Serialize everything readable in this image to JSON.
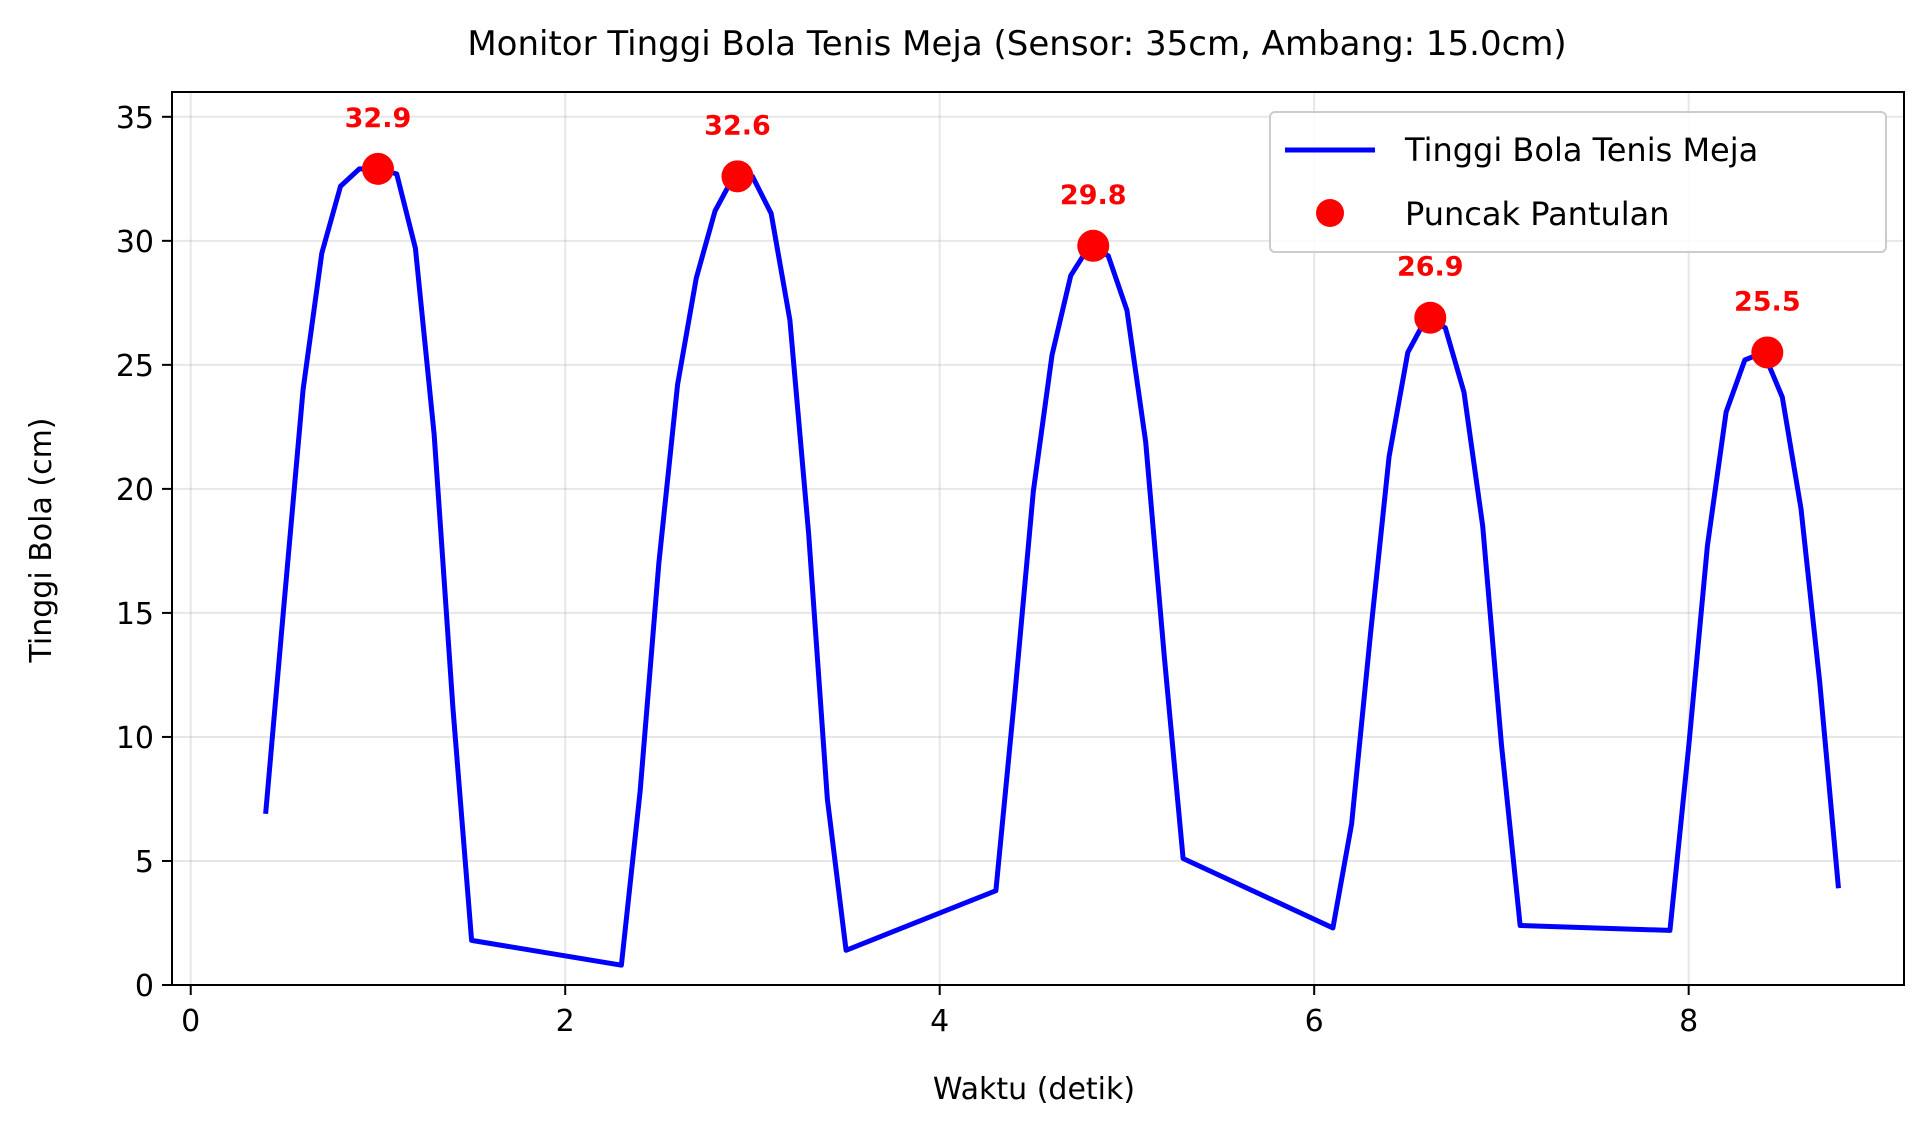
{
  "chart_data": {
    "type": "line",
    "title": "Monitor Tinggi Bola Tenis Meja (Sensor: 35cm, Ambang: 15.0cm)",
    "xlabel": "Waktu (detik)",
    "ylabel": "Tinggi Bola (cm)",
    "xlim": [
      -0.1,
      9.15
    ],
    "ylim": [
      0,
      36
    ],
    "x_ticks": [
      0,
      2,
      4,
      6,
      8
    ],
    "x_tick_labels": [
      "0",
      "2",
      "4",
      "6",
      "8"
    ],
    "y_ticks": [
      0,
      5,
      10,
      15,
      20,
      25,
      30,
      35
    ],
    "y_tick_labels": [
      "0",
      "5",
      "10",
      "15",
      "20",
      "25",
      "30",
      "35"
    ],
    "grid": true,
    "legend_position": "top-right",
    "series": [
      {
        "name": "Tinggi Bola Tenis Meja",
        "kind": "line",
        "color": "#0000ff",
        "x": [
          0.4,
          0.5,
          0.6,
          0.7,
          0.8,
          0.9,
          1.0,
          1.1,
          1.2,
          1.3,
          1.4,
          1.5,
          2.3,
          2.4,
          2.5,
          2.6,
          2.7,
          2.8,
          2.9,
          3.0,
          3.1,
          3.2,
          3.3,
          3.4,
          3.5,
          4.3,
          4.4,
          4.5,
          4.6,
          4.7,
          4.8,
          4.9,
          5.0,
          5.1,
          5.2,
          5.3,
          6.1,
          6.2,
          6.3,
          6.4,
          6.5,
          6.6,
          6.7,
          6.8,
          6.9,
          7.0,
          7.1,
          7.9,
          8.0,
          8.1,
          8.2,
          8.3,
          8.4,
          8.5,
          8.6,
          8.7,
          8.8
        ],
        "y": [
          6.9,
          15.5,
          24.0,
          29.5,
          32.2,
          32.9,
          32.9,
          32.7,
          29.7,
          22.2,
          11.2,
          1.8,
          0.8,
          7.8,
          17.0,
          24.2,
          28.5,
          31.2,
          32.6,
          32.6,
          31.1,
          26.8,
          18.2,
          7.5,
          1.4,
          3.8,
          11.6,
          19.9,
          25.4,
          28.6,
          29.8,
          29.4,
          27.2,
          21.9,
          13.2,
          5.1,
          2.3,
          6.5,
          14.1,
          21.3,
          25.5,
          26.9,
          26.5,
          23.9,
          18.5,
          9.7,
          2.4,
          2.2,
          9.6,
          17.7,
          23.1,
          25.2,
          25.5,
          23.7,
          19.2,
          12.2,
          3.9
        ]
      },
      {
        "name": "Puncak Pantulan",
        "kind": "scatter",
        "color": "#ff0000",
        "x": [
          1.0,
          2.92,
          4.82,
          6.62,
          8.42
        ],
        "y": [
          32.9,
          32.6,
          29.8,
          26.9,
          25.5
        ],
        "labels": [
          "32.9",
          "32.6",
          "29.8",
          "26.9",
          "25.5"
        ]
      }
    ]
  }
}
